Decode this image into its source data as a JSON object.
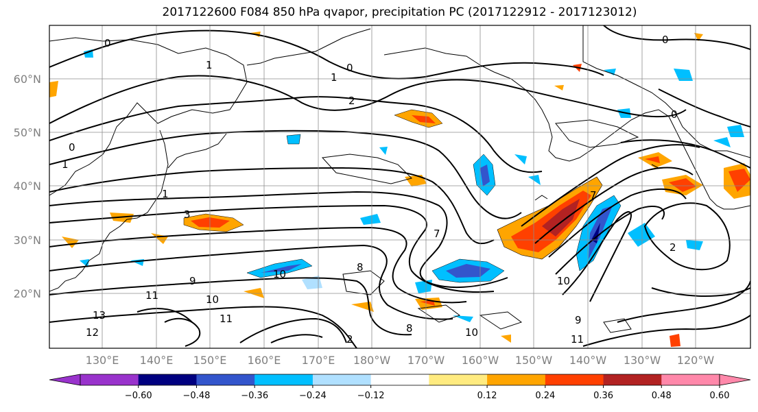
{
  "title": "2017122600 F084 850 hPa qvapor, precipitation PC (2017122912 - 2017123012)",
  "latitude_labels": [
    "60°N",
    "50°N",
    "40°N",
    "30°N",
    "20°N"
  ],
  "longitude_labels": [
    "130°E",
    "140°E",
    "150°E",
    "160°E",
    "170°E",
    "180°W",
    "170°W",
    "160°W",
    "150°W",
    "140°W",
    "130°W",
    "120°W"
  ],
  "colorbar": {
    "colors": [
      "#9933cc",
      "#000080",
      "#3355cc",
      "#00bfff",
      "#b0e0ff",
      "#ffffff",
      "#ffeb80",
      "#ffa500",
      "#ff4000",
      "#b22222",
      "#ff88aa"
    ],
    "tick_labels": [
      "−0.60",
      "−0.48",
      "−0.36",
      "−0.24",
      "−0.12",
      "0.12",
      "0.24",
      "0.36",
      "0.48",
      "0.60"
    ]
  },
  "contour_labels": [
    "0",
    "0",
    "1",
    "1",
    "2",
    "2",
    "1",
    "0",
    "1",
    "3",
    "7",
    "8",
    "9",
    "10",
    "10",
    "11",
    "12",
    "13",
    "11",
    "10",
    "9",
    "8",
    "7",
    "10",
    "11",
    "2",
    "0",
    "0"
  ]
}
